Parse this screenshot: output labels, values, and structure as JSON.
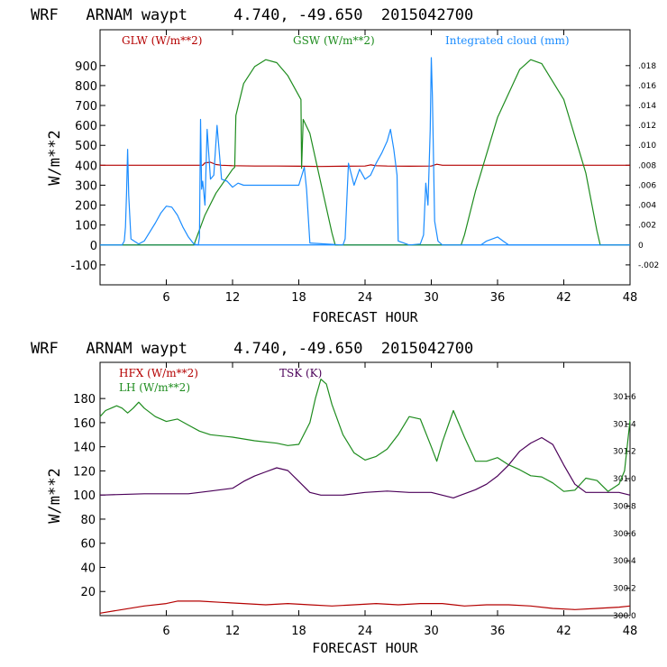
{
  "chart_data": [
    {
      "type": "line",
      "title": "WRF   ARNAM waypt     4.740, -49.650  2015042700",
      "xlabel": "FORECAST HOUR",
      "ylabel": "W/m**2",
      "xlim": [
        0,
        48
      ],
      "ylim": [
        -200,
        1080
      ],
      "x_ticks": [
        6,
        12,
        18,
        24,
        30,
        36,
        42,
        48
      ],
      "y_ticks": [
        -100,
        0,
        100,
        200,
        300,
        400,
        500,
        600,
        700,
        800,
        900
      ],
      "right_axis": {
        "ticks": [
          "-.002",
          "0",
          ".002",
          ".004",
          ".006",
          ".008",
          ".010",
          ".012",
          ".014",
          ".016",
          ".018"
        ],
        "tick_values": [
          -0.002,
          0,
          0.002,
          0.004,
          0.006,
          0.008,
          0.01,
          0.012,
          0.014,
          0.016,
          0.018
        ],
        "range": [
          -0.004,
          0.0216
        ]
      },
      "zero_line": true,
      "colors": {
        "glw": "#b40000",
        "gsw": "#1e8c1e",
        "cloud": "#1a8cff",
        "zero": "#1a8cff"
      },
      "series": [
        {
          "name": "GLW (W/m**2)",
          "color": "#b40000",
          "x": [
            0,
            9.3,
            9.5,
            10,
            10.5,
            11,
            12,
            14,
            16,
            18,
            20,
            22,
            24,
            24.5,
            25,
            26,
            28,
            30,
            30.5,
            31,
            34,
            36,
            40,
            44,
            48
          ],
          "y": [
            400,
            400,
            412,
            415,
            404,
            400,
            398,
            396,
            396,
            395,
            394,
            395,
            396,
            402,
            398,
            396,
            395,
            396,
            405,
            400,
            400,
            400,
            400,
            400,
            400
          ]
        },
        {
          "name": "GSW (W/m**2)",
          "color": "#1e8c1e",
          "x": [
            0,
            8.5,
            8.9,
            9.5,
            10.5,
            11.5,
            12,
            12.2,
            12.3,
            13,
            14,
            15,
            16,
            17,
            18.2,
            18.25,
            18.4,
            19,
            20,
            21,
            21.3,
            24,
            32.7,
            33,
            34,
            36,
            38,
            39,
            40,
            42,
            44,
            45,
            45.3,
            48
          ],
          "y": [
            0,
            0,
            60,
            150,
            260,
            340,
            380,
            390,
            650,
            810,
            895,
            930,
            915,
            850,
            730,
            385,
            630,
            560,
            310,
            60,
            0,
            0,
            0,
            50,
            270,
            640,
            880,
            930,
            910,
            730,
            360,
            70,
            0,
            0
          ]
        },
        {
          "name": "Integrated cloud (mm)",
          "color": "#1a8cff",
          "x": [
            0,
            2.0,
            2.2,
            2.3,
            2.4,
            2.5,
            2.6,
            2.8,
            3.5,
            4.0,
            5.0,
            5.5,
            6.0,
            6.5,
            7.0,
            7.5,
            8.0,
            8.5,
            8.9,
            9.0,
            9.1,
            9.2,
            9.3,
            9.5,
            9.7,
            10.0,
            10.3,
            10.6,
            11.0,
            11.5,
            12.0,
            12.5,
            13.0,
            13.5,
            14.0,
            14.5,
            15.0,
            15.5,
            16.0,
            16.5,
            17.0,
            17.5,
            18.0,
            18.5,
            18.7,
            19.0,
            22.0,
            22.2,
            22.5,
            23.0,
            23.5,
            24.0,
            24.5,
            25.0,
            25.5,
            26.0,
            26.3,
            26.6,
            26.9,
            27.0,
            27.5,
            28.0,
            29.0,
            29.3,
            29.5,
            29.7,
            29.9,
            30.0,
            30.1,
            30.3,
            30.6,
            31.0,
            34.5,
            35.0,
            36.0,
            36.5,
            37.0,
            48.0
          ],
          "y": [
            0,
            0,
            20,
            90,
            260,
            480,
            250,
            30,
            5,
            20,
            110,
            160,
            195,
            190,
            150,
            90,
            40,
            5,
            0,
            40,
            630,
            280,
            320,
            200,
            580,
            330,
            350,
            600,
            330,
            320,
            290,
            310,
            300,
            300,
            300,
            300,
            300,
            300,
            300,
            300,
            300,
            300,
            300,
            390,
            280,
            10,
            0,
            30,
            410,
            300,
            380,
            330,
            350,
            410,
            460,
            520,
            580,
            480,
            350,
            20,
            10,
            0,
            5,
            50,
            310,
            200,
            580,
            940,
            750,
            120,
            20,
            0,
            0,
            20,
            40,
            20,
            0,
            0
          ]
        }
      ]
    },
    {
      "type": "line",
      "title": "WRF   ARNAM waypt     4.740, -49.650  2015042700",
      "xlabel": "FORECAST HOUR",
      "ylabel": "W/m**2",
      "xlim": [
        0,
        48
      ],
      "ylim": [
        0,
        210
      ],
      "x_ticks": [
        6,
        12,
        18,
        24,
        30,
        36,
        42,
        48
      ],
      "y_ticks": [
        20,
        40,
        60,
        80,
        100,
        120,
        140,
        160,
        180
      ],
      "right_axis": {
        "ticks": [
          "300.0",
          "300.2",
          "300.4",
          "300.6",
          "300.8",
          "301.0",
          "301.2",
          "301.4",
          "301.6"
        ],
        "tick_values": [
          300.0,
          300.2,
          300.4,
          300.6,
          300.8,
          301.0,
          301.2,
          301.4,
          301.6
        ],
        "range": [
          300.0,
          301.85
        ]
      },
      "colors": {
        "hfx": "#b40000",
        "lh": "#1e8c1e",
        "tsk": "#4b0059"
      },
      "series": [
        {
          "name": "HFX (W/m**2)",
          "color": "#b40000",
          "x": [
            0,
            2,
            4,
            6,
            7,
            9,
            11,
            13,
            15,
            17,
            19,
            21,
            23,
            25,
            27,
            29,
            31,
            33,
            35,
            37,
            39,
            41,
            43,
            45,
            47,
            48
          ],
          "y": [
            2,
            5,
            8,
            10,
            12,
            12,
            11,
            10,
            9,
            10,
            9,
            8,
            9,
            10,
            9,
            10,
            10,
            8,
            9,
            9,
            8,
            6,
            5,
            6,
            7,
            8
          ]
        },
        {
          "name": "LH (W/m**2)",
          "color": "#1e8c1e",
          "x": [
            0,
            0.5,
            1,
            1.5,
            2,
            2.5,
            3,
            3.5,
            4,
            5,
            6,
            7,
            8,
            9,
            10,
            12,
            14,
            16,
            17,
            18,
            19,
            19.5,
            20,
            20.5,
            21,
            22,
            23,
            24,
            25,
            26,
            27,
            28,
            29,
            30,
            30.5,
            31,
            32,
            33,
            34,
            35,
            36,
            37,
            38,
            39,
            40,
            41,
            42,
            43,
            44,
            45,
            46,
            47,
            47.5,
            48
          ],
          "y": [
            165,
            170,
            172,
            174,
            172,
            168,
            172,
            177,
            172,
            165,
            161,
            163,
            158,
            153,
            150,
            148,
            145,
            143,
            141,
            142,
            160,
            180,
            196,
            192,
            175,
            150,
            135,
            129,
            132,
            138,
            150,
            165,
            163,
            140,
            128,
            144,
            170,
            148,
            128,
            128,
            131,
            125,
            121,
            116,
            115,
            110,
            103,
            104,
            114,
            112,
            103,
            109,
            120,
            162
          ]
        },
        {
          "name": "TSK (K)",
          "color": "#4b0059",
          "x": [
            0,
            4,
            8,
            10,
            12,
            13,
            14,
            15,
            16,
            17,
            18,
            19,
            20,
            22,
            24,
            26,
            28,
            30,
            32,
            34,
            35,
            36,
            37,
            38,
            39,
            40,
            41,
            42,
            43,
            44,
            45,
            46,
            47,
            48
          ],
          "y": [
            300.88,
            300.89,
            300.89,
            300.91,
            300.93,
            300.98,
            301.02,
            301.05,
            301.08,
            301.06,
            300.98,
            300.9,
            300.88,
            300.88,
            300.9,
            300.91,
            300.9,
            300.9,
            300.86,
            300.92,
            300.96,
            301.02,
            301.1,
            301.2,
            301.26,
            301.3,
            301.25,
            301.1,
            300.96,
            300.9,
            300.9,
            300.9,
            300.9,
            300.88
          ]
        }
      ]
    }
  ]
}
